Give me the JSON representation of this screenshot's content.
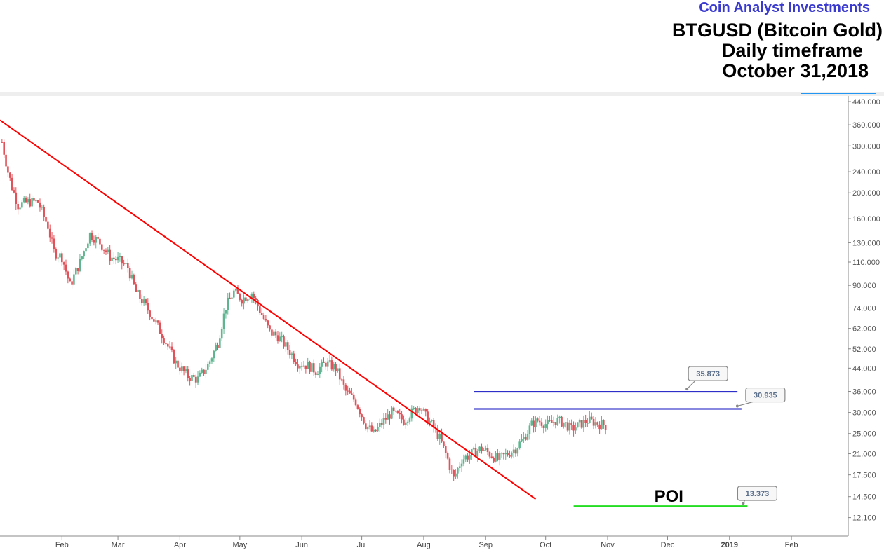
{
  "header": {
    "brand": "Coin Analyst Investments",
    "symbol_title": "BTGUSD (Bitcoin Gold)",
    "timeframe": "Daily timeframe",
    "date": "October 31,2018"
  },
  "colors": {
    "bull": "#5fb58f",
    "bear": "#e0535a",
    "trendline": "#ff0000",
    "resistance": "#1010c0",
    "support": "#22dd22",
    "axis_accent": "#2196f3"
  },
  "chart_data": {
    "type": "candlestick",
    "scale": "log",
    "ylim": [
      11.5,
      440
    ],
    "y_ticks": [
      "440.000",
      "360.000",
      "300.000",
      "240.000",
      "200.000",
      "160.000",
      "130.000",
      "110.000",
      "90.000",
      "74.000",
      "62.000",
      "52.000",
      "44.000",
      "36.000",
      "30.000",
      "25.000",
      "21.000",
      "17.500",
      "14.500",
      "12.100"
    ],
    "x_ticks": [
      "Feb",
      "Mar",
      "Apr",
      "May",
      "Jun",
      "Jul",
      "Aug",
      "Sep",
      "Oct",
      "Nov",
      "Dec",
      "2019",
      "Feb"
    ],
    "x_range": [
      "2018-01-01",
      "2019-02-28"
    ],
    "trendline": {
      "start": {
        "date": "2018-01-01",
        "value": 375
      },
      "end": {
        "date": "2018-09-26",
        "value": 14.2
      }
    },
    "levels": [
      {
        "name": "resistance-upper",
        "value": 35.873,
        "label": "35.873",
        "from": "2018-08-26",
        "to": "2019-01-05"
      },
      {
        "name": "resistance-lower",
        "value": 30.935,
        "label": "30.935",
        "from": "2018-08-26",
        "to": "2019-01-07"
      },
      {
        "name": "poi-support",
        "value": 13.373,
        "label": "13.373",
        "from": "2018-10-15",
        "to": "2019-01-10"
      }
    ],
    "annotation": "POI",
    "price_path": [
      [
        "2018-01-02",
        310
      ],
      [
        "2018-01-05",
        240
      ],
      [
        "2018-01-07",
        210
      ],
      [
        "2018-01-10",
        180
      ],
      [
        "2018-01-15",
        185
      ],
      [
        "2018-01-20",
        185
      ],
      [
        "2018-01-25",
        150
      ],
      [
        "2018-01-28",
        120
      ],
      [
        "2018-02-01",
        115
      ],
      [
        "2018-02-05",
        90
      ],
      [
        "2018-02-10",
        110
      ],
      [
        "2018-02-15",
        140
      ],
      [
        "2018-02-20",
        130
      ],
      [
        "2018-02-25",
        115
      ],
      [
        "2018-03-01",
        112
      ],
      [
        "2018-03-06",
        105
      ],
      [
        "2018-03-10",
        85
      ],
      [
        "2018-03-15",
        75
      ],
      [
        "2018-03-20",
        65
      ],
      [
        "2018-03-25",
        55
      ],
      [
        "2018-03-30",
        46
      ],
      [
        "2018-04-05",
        41
      ],
      [
        "2018-04-10",
        40
      ],
      [
        "2018-04-15",
        45
      ],
      [
        "2018-04-20",
        55
      ],
      [
        "2018-04-24",
        75
      ],
      [
        "2018-04-28",
        85
      ],
      [
        "2018-05-02",
        80
      ],
      [
        "2018-05-07",
        84
      ],
      [
        "2018-05-12",
        70
      ],
      [
        "2018-05-16",
        60
      ],
      [
        "2018-05-20",
        58
      ],
      [
        "2018-05-25",
        52
      ],
      [
        "2018-05-30",
        46
      ],
      [
        "2018-06-04",
        45
      ],
      [
        "2018-06-08",
        43
      ],
      [
        "2018-06-13",
        46
      ],
      [
        "2018-06-18",
        44
      ],
      [
        "2018-06-23",
        36
      ],
      [
        "2018-06-28",
        33
      ],
      [
        "2018-07-03",
        27
      ],
      [
        "2018-07-07",
        25
      ],
      [
        "2018-07-12",
        28
      ],
      [
        "2018-07-16",
        30
      ],
      [
        "2018-07-22",
        28
      ],
      [
        "2018-07-26",
        30
      ],
      [
        "2018-07-30",
        32
      ],
      [
        "2018-08-02",
        29
      ],
      [
        "2018-08-05",
        27
      ],
      [
        "2018-08-09",
        24
      ],
      [
        "2018-08-13",
        20
      ],
      [
        "2018-08-16",
        17
      ],
      [
        "2018-08-20",
        20
      ],
      [
        "2018-08-25",
        21
      ],
      [
        "2018-08-30",
        22
      ],
      [
        "2018-09-03",
        21
      ],
      [
        "2018-09-07",
        20
      ],
      [
        "2018-09-12",
        21
      ],
      [
        "2018-09-16",
        22
      ],
      [
        "2018-09-20",
        24
      ],
      [
        "2018-09-24",
        27
      ],
      [
        "2018-09-27",
        28
      ],
      [
        "2018-10-02",
        27
      ],
      [
        "2018-10-06",
        28
      ],
      [
        "2018-10-10",
        27.5
      ],
      [
        "2018-10-14",
        26
      ],
      [
        "2018-10-18",
        27
      ],
      [
        "2018-10-22",
        28
      ],
      [
        "2018-10-26",
        27.5
      ],
      [
        "2018-10-31",
        26.8
      ]
    ]
  }
}
